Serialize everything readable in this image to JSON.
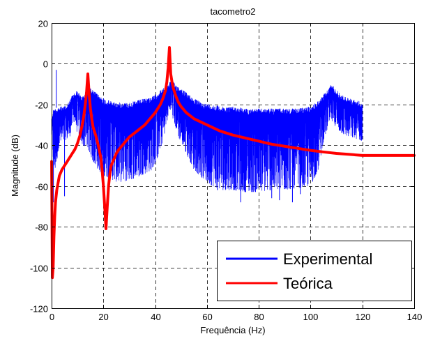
{
  "chart_data": {
    "type": "line",
    "title": "tacometro2",
    "xlabel": "Frequência (Hz)",
    "ylabel": "Magnitude (dB)",
    "xlim": [
      0,
      140
    ],
    "ylim": [
      -120,
      20
    ],
    "xticks": [
      0,
      20,
      40,
      60,
      80,
      100,
      120,
      140
    ],
    "yticks": [
      20,
      0,
      -20,
      -40,
      -60,
      -80,
      -100,
      -120
    ],
    "grid": true,
    "legend_position": "bottom-right",
    "series": [
      {
        "name": "Experimental",
        "color": "#0000ff",
        "style": "noisy-fill",
        "upper": [
          [
            0,
            -25
          ],
          [
            1,
            -22
          ],
          [
            3,
            -21
          ],
          [
            5,
            -21
          ],
          [
            7,
            -18
          ],
          [
            8,
            -15
          ],
          [
            9,
            -14
          ],
          [
            10,
            -13
          ],
          [
            11,
            -15
          ],
          [
            12,
            -16
          ],
          [
            13,
            -14
          ],
          [
            14,
            -12
          ],
          [
            15,
            -12
          ],
          [
            16,
            -13
          ],
          [
            18,
            -15
          ],
          [
            20,
            -17
          ],
          [
            22,
            -18
          ],
          [
            25,
            -19
          ],
          [
            28,
            -19
          ],
          [
            30,
            -19
          ],
          [
            33,
            -18
          ],
          [
            36,
            -17
          ],
          [
            39,
            -16
          ],
          [
            41,
            -14
          ],
          [
            43,
            -12
          ],
          [
            45,
            -10
          ],
          [
            46,
            -8
          ],
          [
            47,
            -9
          ],
          [
            49,
            -11
          ],
          [
            52,
            -14
          ],
          [
            55,
            -17
          ],
          [
            58,
            -19
          ],
          [
            62,
            -20
          ],
          [
            66,
            -21
          ],
          [
            70,
            -21
          ],
          [
            75,
            -22
          ],
          [
            80,
            -22
          ],
          [
            85,
            -22
          ],
          [
            90,
            -22
          ],
          [
            95,
            -22
          ],
          [
            100,
            -21
          ],
          [
            103,
            -18
          ],
          [
            105,
            -15
          ],
          [
            107,
            -12
          ],
          [
            108,
            -10
          ],
          [
            109,
            -11
          ],
          [
            111,
            -14
          ],
          [
            113,
            -16
          ],
          [
            115,
            -17
          ],
          [
            118,
            -18
          ],
          [
            120,
            -19
          ]
        ],
        "lower": [
          [
            0,
            -35
          ],
          [
            1,
            -55
          ],
          [
            2,
            -48
          ],
          [
            3,
            -40
          ],
          [
            5,
            -38
          ],
          [
            7,
            -36
          ],
          [
            8,
            -30
          ],
          [
            9,
            -28
          ],
          [
            10,
            -35
          ],
          [
            12,
            -40
          ],
          [
            14,
            -42
          ],
          [
            16,
            -48
          ],
          [
            18,
            -52
          ],
          [
            20,
            -55
          ],
          [
            22,
            -56
          ],
          [
            25,
            -58
          ],
          [
            28,
            -58
          ],
          [
            30,
            -57
          ],
          [
            33,
            -56
          ],
          [
            36,
            -54
          ],
          [
            39,
            -52
          ],
          [
            41,
            -46
          ],
          [
            43,
            -38
          ],
          [
            45,
            -26
          ],
          [
            46,
            -22
          ],
          [
            47,
            -28
          ],
          [
            49,
            -36
          ],
          [
            52,
            -44
          ],
          [
            55,
            -52
          ],
          [
            58,
            -56
          ],
          [
            62,
            -60
          ],
          [
            66,
            -62
          ],
          [
            70,
            -62
          ],
          [
            75,
            -63
          ],
          [
            80,
            -63
          ],
          [
            85,
            -62
          ],
          [
            90,
            -62
          ],
          [
            95,
            -61
          ],
          [
            100,
            -60
          ],
          [
            103,
            -52
          ],
          [
            105,
            -38
          ],
          [
            107,
            -30
          ],
          [
            108,
            -28
          ],
          [
            109,
            -30
          ],
          [
            111,
            -33
          ],
          [
            113,
            -35
          ],
          [
            115,
            -36
          ],
          [
            118,
            -37
          ],
          [
            120,
            -38
          ]
        ],
        "spikes": [
          [
            0.7,
            -68
          ],
          [
            1.8,
            -3
          ],
          [
            5,
            -65
          ],
          [
            20,
            -62
          ],
          [
            22,
            -63
          ],
          [
            64,
            -62
          ],
          [
            73,
            -68
          ],
          [
            85,
            -66
          ],
          [
            88,
            -67
          ],
          [
            93,
            -68
          ],
          [
            96,
            -64
          ]
        ]
      },
      {
        "name": "Teórica",
        "color": "#ff0000",
        "x": [
          0,
          0.3,
          0.6,
          0.9,
          1.2,
          1.5,
          2,
          3,
          4,
          5,
          6,
          7,
          8,
          9,
          10,
          11,
          12,
          12.5,
          13,
          13.5,
          14,
          14.5,
          15,
          15.5,
          16,
          17,
          18,
          19,
          19.5,
          20,
          20.5,
          21,
          21.5,
          22,
          22.5,
          23,
          24,
          25,
          26,
          28,
          30,
          32,
          34,
          36,
          38,
          40,
          41,
          42,
          43,
          44,
          44.5,
          45,
          45.5,
          46,
          46.5,
          47,
          47.5,
          48,
          49,
          50,
          52,
          55,
          60,
          65,
          70,
          75,
          80,
          85,
          90,
          95,
          100,
          105,
          110,
          115,
          120,
          125,
          130,
          135,
          140
        ],
        "y": [
          -48,
          -105,
          -100,
          -85,
          -75,
          -68,
          -62,
          -55,
          -52,
          -50,
          -48,
          -46,
          -44,
          -42,
          -39,
          -35,
          -29,
          -25,
          -20,
          -14,
          -5,
          -15,
          -22,
          -27,
          -31,
          -35,
          -40,
          -46,
          -52,
          -60,
          -70,
          -81,
          -70,
          -60,
          -54,
          -50,
          -47,
          -44,
          -42,
          -39,
          -36,
          -34,
          -32,
          -30,
          -27,
          -24,
          -22,
          -20,
          -17,
          -13,
          -9,
          -2,
          8,
          -5,
          -9,
          -12,
          -14,
          -16,
          -19,
          -21,
          -24,
          -27,
          -30,
          -33,
          -35,
          -36.5,
          -38,
          -39.5,
          -40.5,
          -41.5,
          -42.5,
          -43.3,
          -44,
          -44.5,
          -45,
          -45,
          -45,
          -45,
          -45
        ]
      }
    ]
  }
}
